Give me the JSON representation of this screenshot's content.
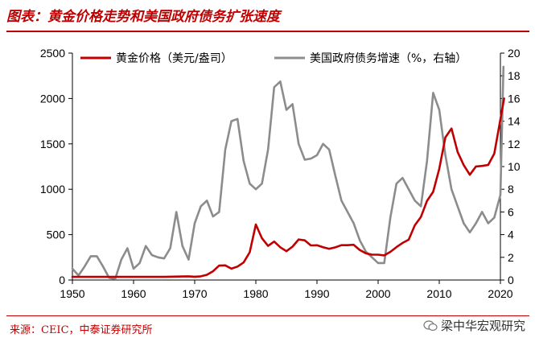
{
  "header": {
    "title": "图表：黄金价格走势和美国政府债务扩张速度"
  },
  "footer": {
    "source": "来源：CEIC，中泰证券研究所",
    "watermark": "梁中华宏观研究"
  },
  "chart_data": {
    "type": "line",
    "title": "",
    "xlim": [
      1950,
      2020
    ],
    "x_ticks": [
      1950,
      1960,
      1970,
      1980,
      1990,
      2000,
      2010,
      2020
    ],
    "y_left": {
      "lim": [
        0,
        2500
      ],
      "ticks": [
        0,
        500,
        1000,
        1500,
        2000,
        2500
      ]
    },
    "y_right": {
      "lim": [
        0,
        20
      ],
      "ticks": [
        0,
        2,
        4,
        6,
        8,
        10,
        12,
        14,
        16,
        18,
        20
      ]
    },
    "legend_position": "top",
    "series": [
      {
        "name": "黄金价格（美元/盎司）",
        "axis": "left",
        "color": "#c00000",
        "points": [
          [
            1950,
            35
          ],
          [
            1955,
            35
          ],
          [
            1960,
            35
          ],
          [
            1965,
            35
          ],
          [
            1968,
            39
          ],
          [
            1969,
            41
          ],
          [
            1970,
            36
          ],
          [
            1971,
            41
          ],
          [
            1972,
            58
          ],
          [
            1973,
            97
          ],
          [
            1974,
            159
          ],
          [
            1975,
            161
          ],
          [
            1976,
            125
          ],
          [
            1977,
            148
          ],
          [
            1978,
            193
          ],
          [
            1979,
            306
          ],
          [
            1980,
            612
          ],
          [
            1981,
            460
          ],
          [
            1982,
            376
          ],
          [
            1983,
            424
          ],
          [
            1984,
            361
          ],
          [
            1985,
            317
          ],
          [
            1986,
            368
          ],
          [
            1987,
            447
          ],
          [
            1988,
            437
          ],
          [
            1989,
            381
          ],
          [
            1990,
            383
          ],
          [
            1991,
            362
          ],
          [
            1992,
            344
          ],
          [
            1993,
            360
          ],
          [
            1994,
            384
          ],
          [
            1995,
            384
          ],
          [
            1996,
            388
          ],
          [
            1997,
            331
          ],
          [
            1998,
            294
          ],
          [
            1999,
            279
          ],
          [
            2000,
            279
          ],
          [
            2001,
            271
          ],
          [
            2002,
            310
          ],
          [
            2003,
            363
          ],
          [
            2004,
            409
          ],
          [
            2005,
            444
          ],
          [
            2006,
            603
          ],
          [
            2007,
            695
          ],
          [
            2008,
            872
          ],
          [
            2009,
            972
          ],
          [
            2010,
            1225
          ],
          [
            2011,
            1572
          ],
          [
            2012,
            1669
          ],
          [
            2013,
            1411
          ],
          [
            2014,
            1266
          ],
          [
            2015,
            1160
          ],
          [
            2016,
            1251
          ],
          [
            2017,
            1257
          ],
          [
            2018,
            1268
          ],
          [
            2019,
            1393
          ],
          [
            2020,
            1770
          ],
          [
            2020.6,
            2000
          ]
        ]
      },
      {
        "name": "美国政府债务增速（%，右轴）",
        "axis": "right",
        "color": "#8c8c8c",
        "points": [
          [
            1950,
            1.0
          ],
          [
            1951,
            0.4
          ],
          [
            1952,
            1.2
          ],
          [
            1953,
            2.1
          ],
          [
            1954,
            2.1
          ],
          [
            1955,
            1.2
          ],
          [
            1956,
            0.2
          ],
          [
            1957,
            0.1
          ],
          [
            1958,
            1.8
          ],
          [
            1959,
            2.8
          ],
          [
            1960,
            1.0
          ],
          [
            1961,
            1.5
          ],
          [
            1962,
            3.0
          ],
          [
            1963,
            2.2
          ],
          [
            1964,
            2.0
          ],
          [
            1965,
            1.9
          ],
          [
            1966,
            2.8
          ],
          [
            1967,
            6.0
          ],
          [
            1968,
            3.0
          ],
          [
            1969,
            1.8
          ],
          [
            1970,
            5.0
          ],
          [
            1971,
            6.5
          ],
          [
            1972,
            7.0
          ],
          [
            1973,
            5.6
          ],
          [
            1974,
            6.0
          ],
          [
            1975,
            11.5
          ],
          [
            1976,
            14.0
          ],
          [
            1977,
            14.2
          ],
          [
            1978,
            10.5
          ],
          [
            1979,
            8.5
          ],
          [
            1980,
            8.0
          ],
          [
            1981,
            8.5
          ],
          [
            1982,
            11.5
          ],
          [
            1983,
            17.0
          ],
          [
            1984,
            17.5
          ],
          [
            1985,
            15.0
          ],
          [
            1986,
            15.5
          ],
          [
            1987,
            12.0
          ],
          [
            1988,
            10.6
          ],
          [
            1989,
            10.7
          ],
          [
            1990,
            11.0
          ],
          [
            1991,
            12.0
          ],
          [
            1992,
            11.5
          ],
          [
            1993,
            9.2
          ],
          [
            1994,
            7.0
          ],
          [
            1995,
            6.0
          ],
          [
            1996,
            5.0
          ],
          [
            1997,
            3.5
          ],
          [
            1998,
            2.5
          ],
          [
            1999,
            2.0
          ],
          [
            2000,
            1.5
          ],
          [
            2001,
            1.5
          ],
          [
            2002,
            5.5
          ],
          [
            2003,
            8.5
          ],
          [
            2004,
            9.0
          ],
          [
            2005,
            8.0
          ],
          [
            2006,
            7.0
          ],
          [
            2007,
            6.5
          ],
          [
            2008,
            10.5
          ],
          [
            2009,
            16.5
          ],
          [
            2010,
            15.0
          ],
          [
            2011,
            11.0
          ],
          [
            2012,
            8.0
          ],
          [
            2013,
            6.5
          ],
          [
            2014,
            5.0
          ],
          [
            2015,
            4.2
          ],
          [
            2016,
            5.0
          ],
          [
            2017,
            6.0
          ],
          [
            2018,
            5.0
          ],
          [
            2019,
            5.5
          ],
          [
            2020,
            7.5
          ],
          [
            2020.5,
            18.8
          ]
        ]
      }
    ]
  }
}
